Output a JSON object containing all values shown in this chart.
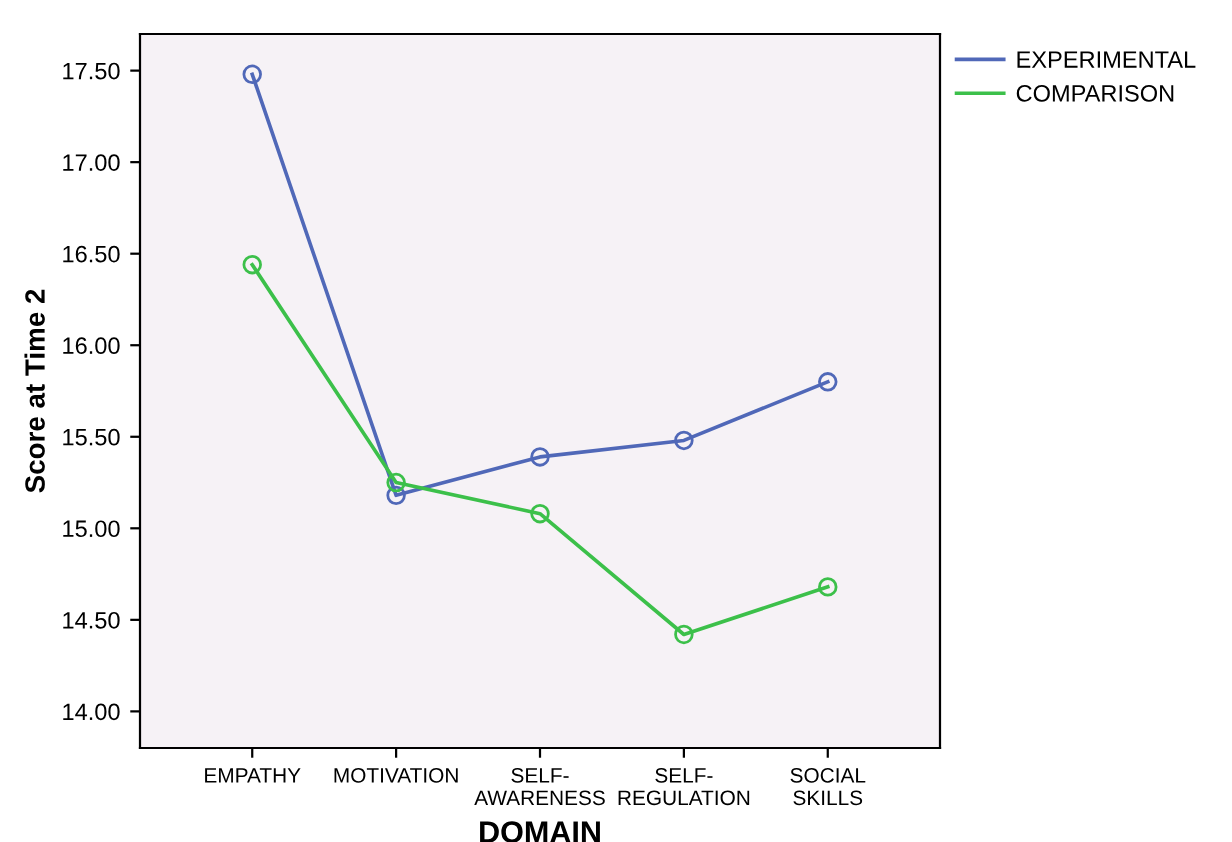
{
  "chart_data": {
    "type": "line",
    "xlabel": "DOMAIN",
    "ylabel": "Score at Time 2",
    "categories": [
      "EMPATHY",
      "MOTIVATION",
      "SELF-\nAWARENESS",
      "SELF-\nREGULATION",
      "SOCIAL\nSKILLS"
    ],
    "series": [
      {
        "name": "EXPERIMENTAL",
        "color": "#5068b8",
        "values": [
          17.48,
          15.18,
          15.39,
          15.48,
          15.8
        ]
      },
      {
        "name": "COMPARISON",
        "color": "#3cc04a",
        "values": [
          16.44,
          15.25,
          15.08,
          14.42,
          14.68
        ]
      }
    ],
    "ylim": [
      13.8,
      17.7
    ],
    "yticks": [
      {
        "value": 14.0,
        "label": "14.00"
      },
      {
        "value": 14.5,
        "label": "14.50"
      },
      {
        "value": 15.0,
        "label": "15.00"
      },
      {
        "value": 15.5,
        "label": "15.50"
      },
      {
        "value": 16.0,
        "label": "16.00"
      },
      {
        "value": 16.5,
        "label": "16.50"
      },
      {
        "value": 17.0,
        "label": "17.00"
      },
      {
        "value": 17.5,
        "label": "17.50"
      }
    ],
    "grid": false,
    "legend": "top right",
    "marker": "circle",
    "line_style": "solid"
  }
}
